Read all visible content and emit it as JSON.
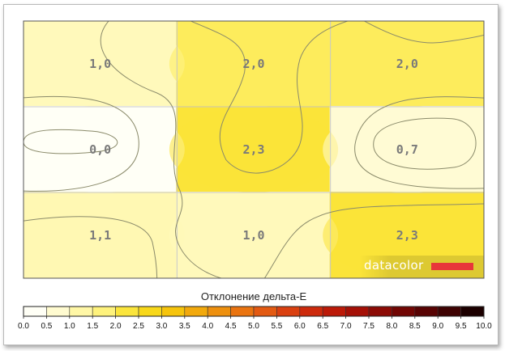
{
  "chart_data": {
    "type": "heatmap",
    "rows": 3,
    "cols": 3,
    "cell_labels": [
      [
        "1,0",
        "2,0",
        "2,0"
      ],
      [
        "0,0",
        "2,3",
        "0,7"
      ],
      [
        "1,1",
        "1,0",
        "2,3"
      ]
    ],
    "values": [
      [
        1.0,
        2.0,
        2.0
      ],
      [
        0.0,
        2.3,
        0.7
      ],
      [
        1.1,
        1.0,
        2.3
      ]
    ],
    "grid": true,
    "colorbar": {
      "title": "Отклонение дельта-E",
      "min": 0.0,
      "max": 10.0,
      "step": 0.5,
      "tick_labels": [
        "0.0",
        "0.5",
        "1.0",
        "1.5",
        "2.0",
        "2.5",
        "3.0",
        "3.5",
        "4.0",
        "4.5",
        "5.0",
        "5.5",
        "6.0",
        "6.5",
        "7.0",
        "7.5",
        "8.0",
        "8.5",
        "9.0",
        "9.5",
        "10.0"
      ],
      "colors": [
        "#fffff6",
        "#fffbd0",
        "#fff7a6",
        "#fef27c",
        "#fbe53c",
        "#f8d81a",
        "#f6c40c",
        "#f2a90c",
        "#ee900e",
        "#ea7410",
        "#e35a12",
        "#da4010",
        "#cd2a0c",
        "#bc1a08",
        "#a51006",
        "#8c0a05",
        "#720604",
        "#580303",
        "#3e0202",
        "#1c0000"
      ]
    }
  },
  "watermark": {
    "text": "datacolor",
    "bar_color": "#e8363a"
  }
}
